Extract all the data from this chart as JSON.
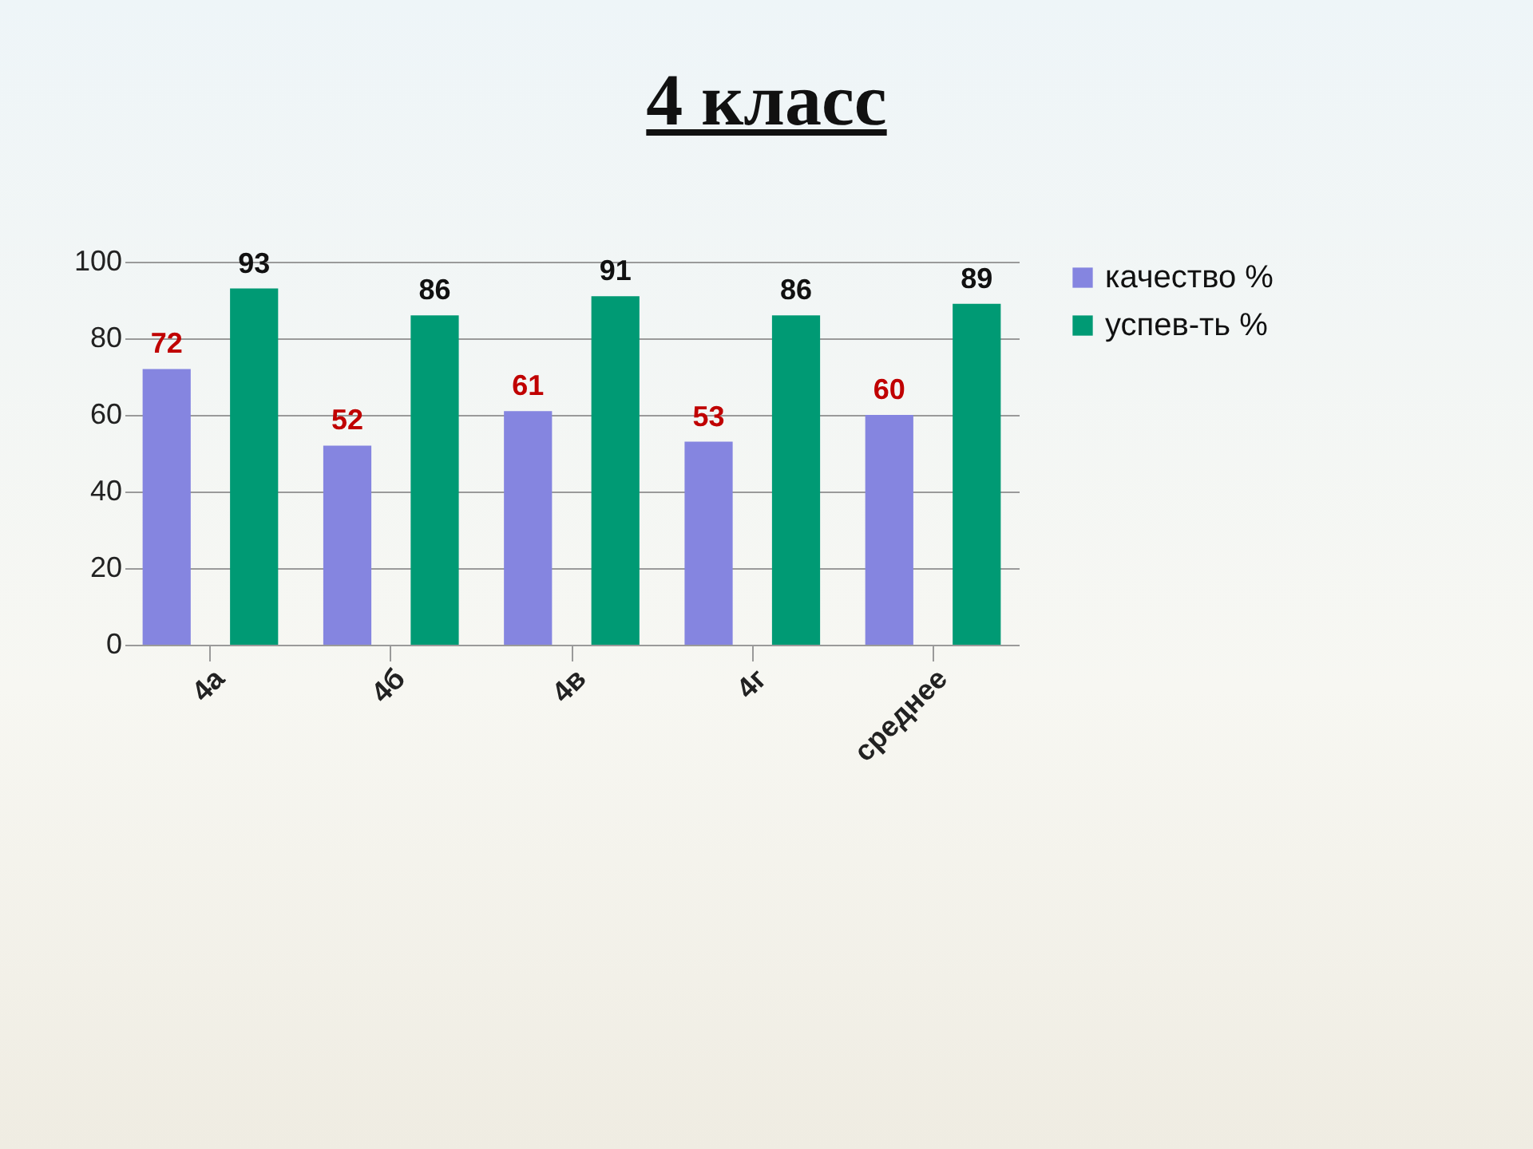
{
  "chart_data": {
    "type": "bar",
    "title": "4 класс",
    "categories": [
      "4а",
      "4б",
      "4в",
      "4г",
      "среднее"
    ],
    "series": [
      {
        "name": "качество %",
        "color": "#8585e0",
        "values": [
          72,
          52,
          61,
          53,
          60
        ]
      },
      {
        "name": "успев-ть %",
        "color": "#009a74",
        "values": [
          93,
          86,
          91,
          86,
          89
        ]
      }
    ],
    "ylim": [
      0,
      100
    ],
    "yticks": [
      0,
      20,
      40,
      60,
      80,
      100
    ],
    "grid": "y",
    "legend": "right",
    "data_labels": true
  }
}
